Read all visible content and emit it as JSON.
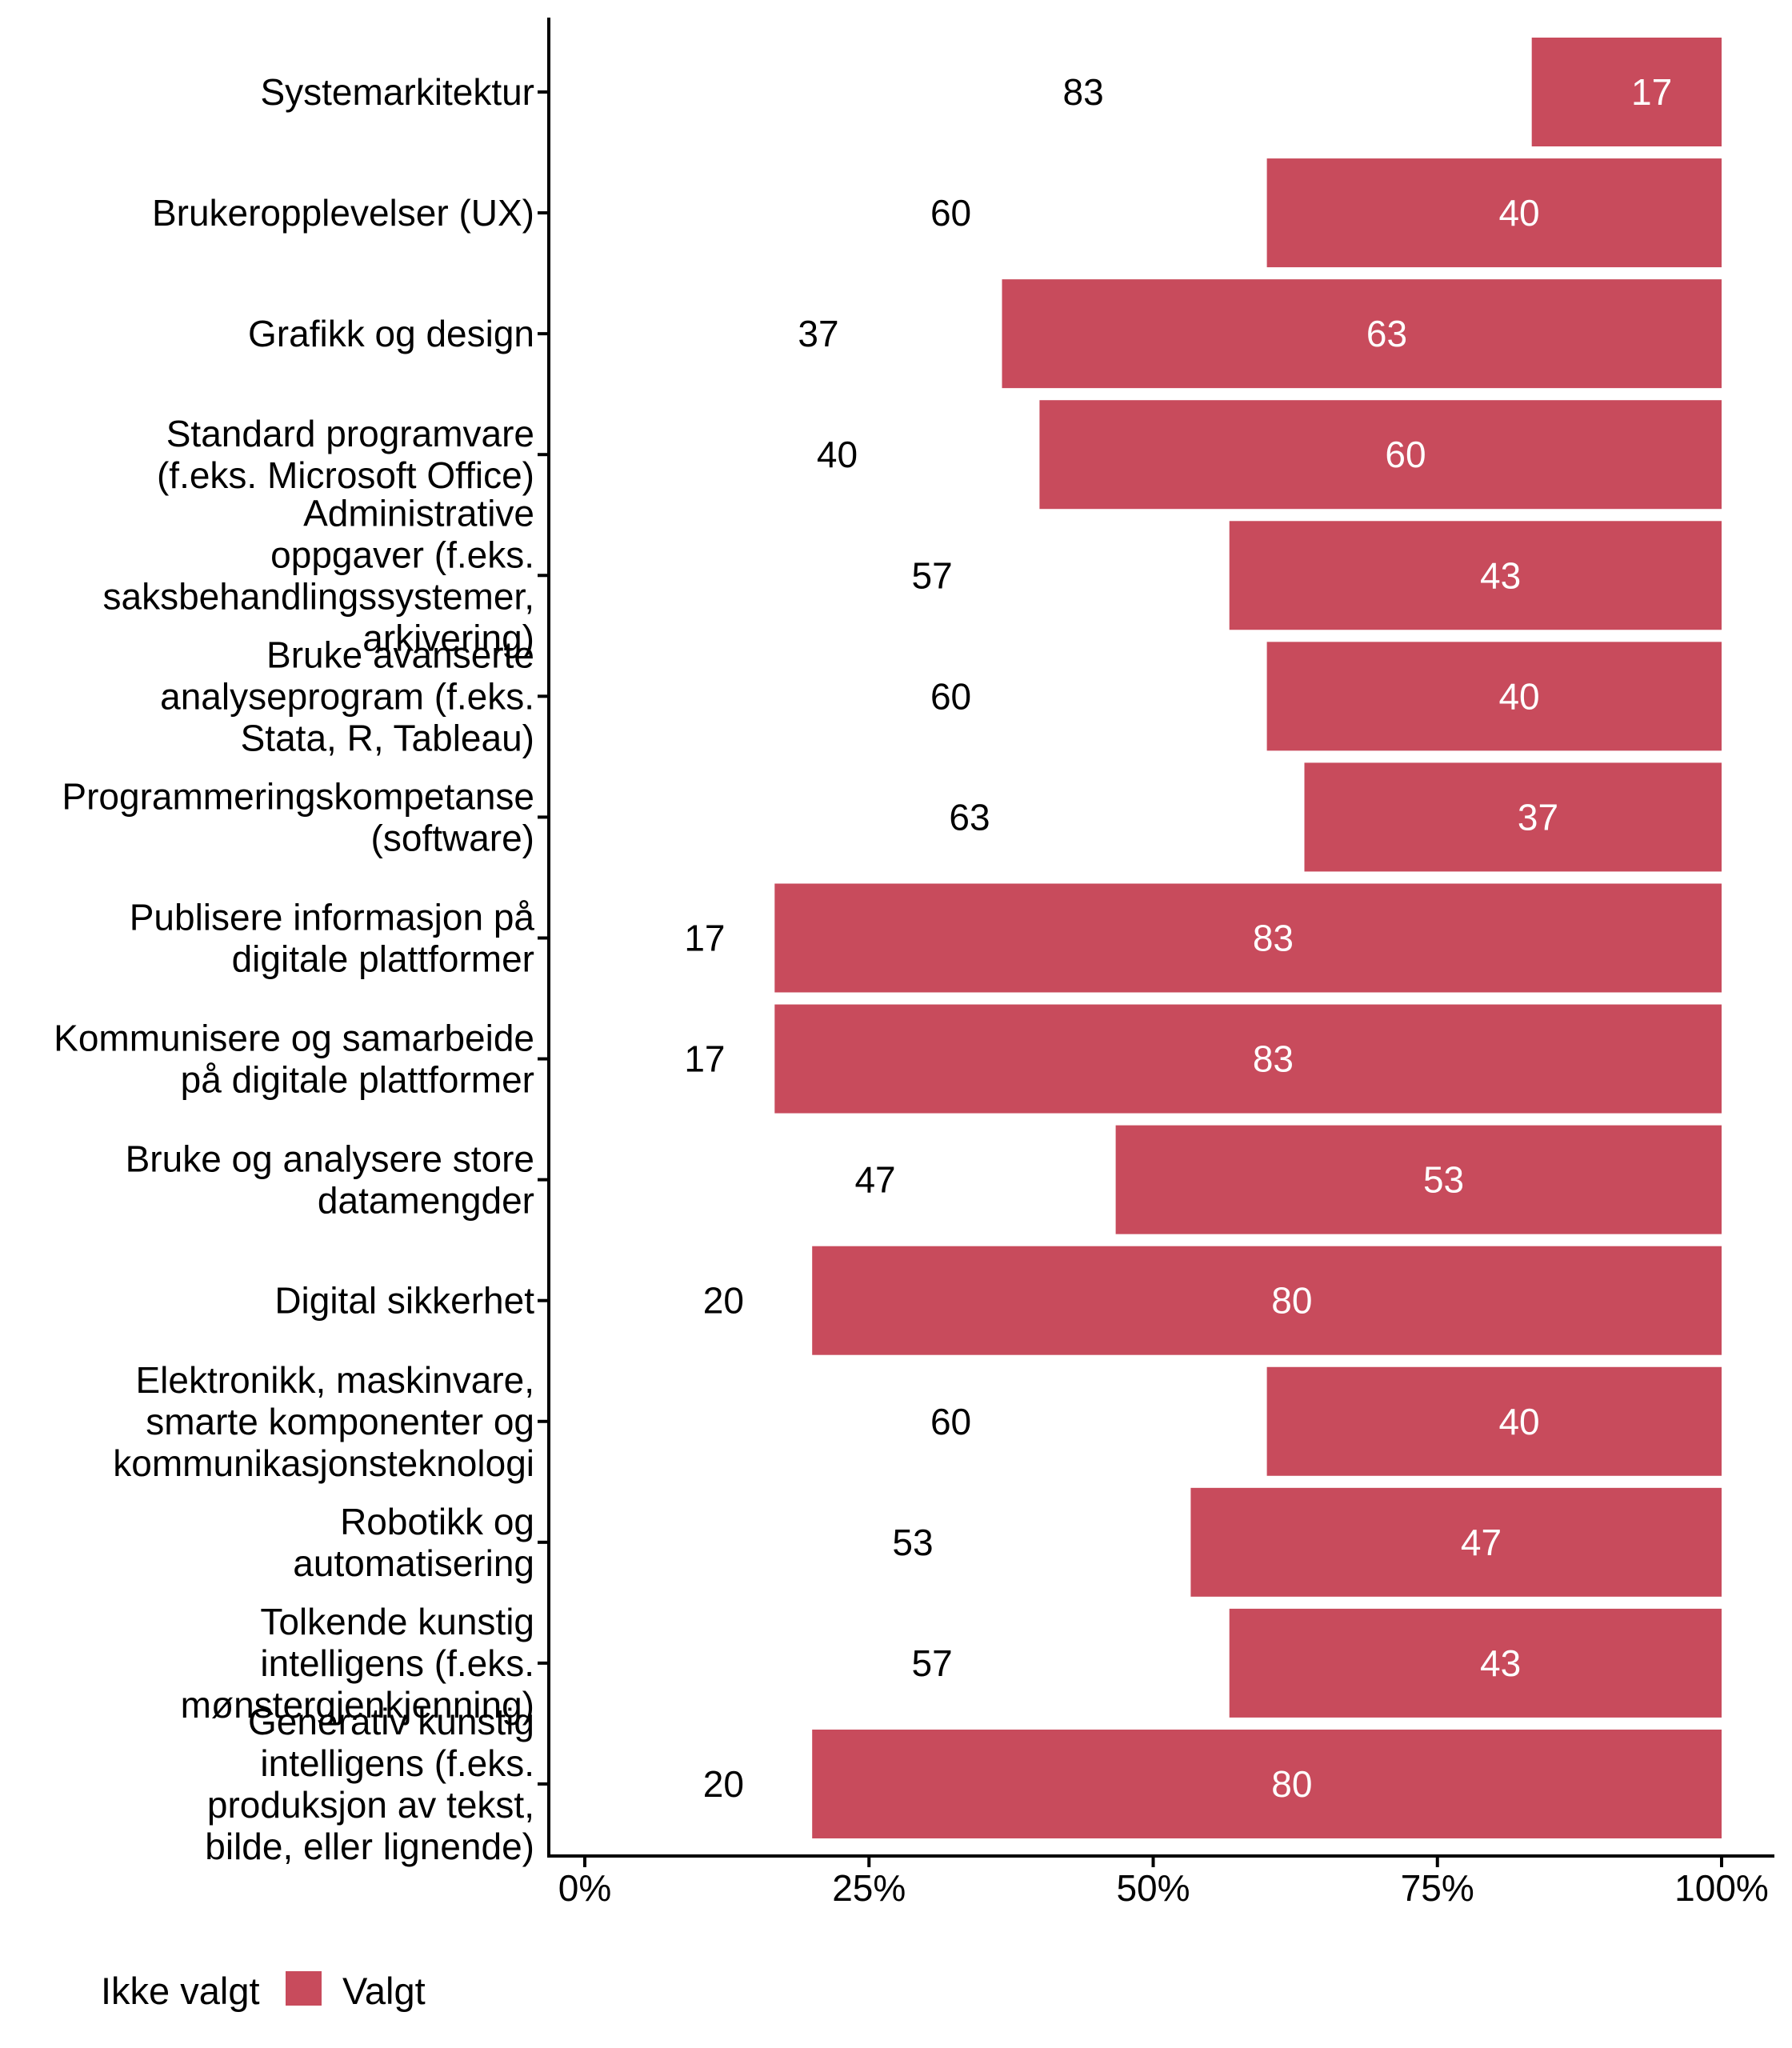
{
  "chart_data": {
    "type": "bar",
    "orientation": "horizontal",
    "stacked": "percent",
    "title": "",
    "xlabel": "",
    "ylabel": "",
    "xlim": [
      0,
      100
    ],
    "x_ticks": [
      "0%",
      "25%",
      "50%",
      "75%",
      "100%"
    ],
    "x_tick_values": [
      0,
      25,
      50,
      75,
      100
    ],
    "grid": false,
    "legend_position": "bottom-left",
    "categories": [
      [
        "Systemarkitektur"
      ],
      [
        "Brukeropplevelser (UX)"
      ],
      [
        "Grafikk og design"
      ],
      [
        "Standard programvare",
        "(f.eks. Microsoft Office)"
      ],
      [
        "Administrative",
        "oppgaver (f.eks.",
        "saksbehandlingssystemer,",
        "arkivering)"
      ],
      [
        "Bruke avanserte",
        "analyseprogram (f.eks.",
        "Stata, R, Tableau)"
      ],
      [
        "Programmeringskompetanse",
        "(software)"
      ],
      [
        "Publisere informasjon på",
        "digitale plattformer"
      ],
      [
        "Kommunisere og samarbeide",
        "på digitale plattformer"
      ],
      [
        "Bruke og analysere store",
        "datamengder"
      ],
      [
        "Digital sikkerhet"
      ],
      [
        "Elektronikk, maskinvare,",
        "smarte komponenter og",
        "kommunikasjonsteknologi"
      ],
      [
        "Robotikk og",
        "automatisering"
      ],
      [
        "Tolkende kunstig",
        "intelligens (f.eks.",
        "mønstergjenkjenning)"
      ],
      [
        "Generativ kunstig",
        "intelligens (f.eks.",
        "produksjon av tekst,",
        "bilde, eller lignende)"
      ]
    ],
    "series": [
      {
        "name": "Ikke valgt",
        "color": "#FFFFFF",
        "values": [
          83.3,
          60.0,
          36.7,
          40.0,
          56.7,
          60.0,
          63.3,
          16.7,
          16.7,
          46.7,
          20.0,
          60.0,
          53.3,
          56.7,
          20.0
        ],
        "labels": [
          "83",
          "60",
          "37",
          "40",
          "57",
          "60",
          "63",
          "17",
          "17",
          "47",
          "20",
          "60",
          "53",
          "57",
          "20"
        ],
        "label_color": "#000000"
      },
      {
        "name": "Valgt",
        "color": "#C84B5C",
        "values": [
          16.7,
          40.0,
          63.3,
          60.0,
          43.3,
          40.0,
          36.7,
          83.3,
          83.3,
          53.3,
          80.0,
          40.0,
          46.7,
          43.3,
          80.0
        ],
        "labels": [
          "17",
          "40",
          "63",
          "60",
          "43",
          "40",
          "37",
          "83",
          "83",
          "53",
          "80",
          "40",
          "47",
          "43",
          "80"
        ],
        "label_color": "#FFFFFF"
      }
    ]
  },
  "legend": {
    "items": [
      {
        "label": "Ikke valgt",
        "color": "#FFFFFF"
      },
      {
        "label": "Valgt",
        "color": "#C84B5C"
      }
    ]
  }
}
